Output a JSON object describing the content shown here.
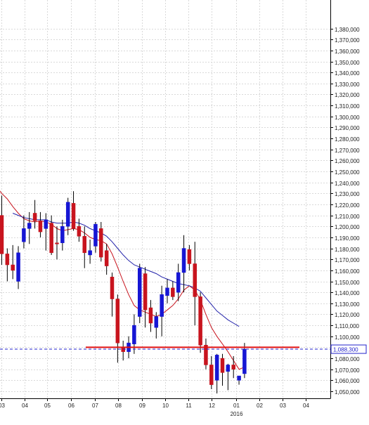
{
  "colors": {
    "background": "#ffffff",
    "grid": "#d9d9d9",
    "axis": "#000000",
    "bull_candle": "#1616d4",
    "bear_candle": "#c8141e",
    "ma_short": "#c8141e",
    "ma_long": "#2222aa",
    "support_line": "#e01010",
    "price_line": "#2222cc",
    "price_label_text": "#2222cc",
    "label_text": "#222222"
  },
  "chart_data": {
    "type": "candlestick",
    "title": "",
    "xlabel": "",
    "ylabel": "",
    "ylim": [
      1043000,
      1389000
    ],
    "grid": true,
    "y_ticks": [
      "1,050,000",
      "1,060,000",
      "1,070,000",
      "1,080,000",
      "1,090,000",
      "1,100,000",
      "1,110,000",
      "1,120,000",
      "1,130,000",
      "1,140,000",
      "1,150,000",
      "1,160,000",
      "1,170,000",
      "1,180,000",
      "1,190,000",
      "1,200,000",
      "1,210,000",
      "1,220,000",
      "1,230,000",
      "1,240,000",
      "1,250,000",
      "1,260,000",
      "1,270,000",
      "1,280,000",
      "1,290,000",
      "1,300,000",
      "1,310,000",
      "1,320,000",
      "1,330,000",
      "1,340,000",
      "1,350,000",
      "1,360,000",
      "1,370,000",
      "1,380,000"
    ],
    "x_ticks": [
      "03",
      "04",
      "05",
      "06",
      "07",
      "08",
      "09",
      "10",
      "11",
      "12",
      "01",
      "02",
      "03",
      "04"
    ],
    "x_sublabel": {
      "under": "01",
      "text": "2016"
    },
    "candles": [
      {
        "o": 1210000,
        "h": 1228000,
        "l": 1165000,
        "c": 1175000
      },
      {
        "o": 1175000,
        "h": 1180000,
        "l": 1150000,
        "c": 1165000
      },
      {
        "o": 1165000,
        "h": 1183000,
        "l": 1152000,
        "c": 1160000
      },
      {
        "o": 1150000,
        "h": 1182000,
        "l": 1143000,
        "c": 1176000
      },
      {
        "o": 1186000,
        "h": 1210000,
        "l": 1180000,
        "c": 1198000
      },
      {
        "o": 1198000,
        "h": 1213000,
        "l": 1184000,
        "c": 1203000
      },
      {
        "o": 1212000,
        "h": 1224000,
        "l": 1198000,
        "c": 1205000
      },
      {
        "o": 1205000,
        "h": 1213000,
        "l": 1190000,
        "c": 1195000
      },
      {
        "o": 1198000,
        "h": 1212000,
        "l": 1178000,
        "c": 1206000
      },
      {
        "o": 1203000,
        "h": 1210000,
        "l": 1174000,
        "c": 1176000
      },
      {
        "o": 1185000,
        "h": 1200000,
        "l": 1170000,
        "c": 1184000
      },
      {
        "o": 1185000,
        "h": 1206000,
        "l": 1178000,
        "c": 1200000
      },
      {
        "o": 1200000,
        "h": 1226000,
        "l": 1192000,
        "c": 1222000
      },
      {
        "o": 1221000,
        "h": 1232000,
        "l": 1196000,
        "c": 1198000
      },
      {
        "o": 1200000,
        "h": 1207000,
        "l": 1186000,
        "c": 1191000
      },
      {
        "o": 1191000,
        "h": 1200000,
        "l": 1162000,
        "c": 1176000
      },
      {
        "o": 1174000,
        "h": 1188000,
        "l": 1166000,
        "c": 1178000
      },
      {
        "o": 1182000,
        "h": 1204000,
        "l": 1176000,
        "c": 1202000
      },
      {
        "o": 1198000,
        "h": 1204000,
        "l": 1168000,
        "c": 1172000
      },
      {
        "o": 1178000,
        "h": 1184000,
        "l": 1156000,
        "c": 1164000
      },
      {
        "o": 1154000,
        "h": 1158000,
        "l": 1118000,
        "c": 1134000
      },
      {
        "o": 1134000,
        "h": 1138000,
        "l": 1076000,
        "c": 1094000
      },
      {
        "o": 1090000,
        "h": 1096000,
        "l": 1078000,
        "c": 1086000
      },
      {
        "o": 1086000,
        "h": 1100000,
        "l": 1080000,
        "c": 1094000
      },
      {
        "o": 1093000,
        "h": 1120000,
        "l": 1084000,
        "c": 1110000
      },
      {
        "o": 1118000,
        "h": 1166000,
        "l": 1112000,
        "c": 1162000
      },
      {
        "o": 1157000,
        "h": 1163000,
        "l": 1108000,
        "c": 1124000
      },
      {
        "o": 1126000,
        "h": 1133000,
        "l": 1104000,
        "c": 1112000
      },
      {
        "o": 1108000,
        "h": 1122000,
        "l": 1098000,
        "c": 1118000
      },
      {
        "o": 1118000,
        "h": 1146000,
        "l": 1100000,
        "c": 1138000
      },
      {
        "o": 1137000,
        "h": 1152000,
        "l": 1130000,
        "c": 1144000
      },
      {
        "o": 1144000,
        "h": 1150000,
        "l": 1133000,
        "c": 1136000
      },
      {
        "o": 1140000,
        "h": 1166000,
        "l": 1132000,
        "c": 1158000
      },
      {
        "o": 1158000,
        "h": 1192000,
        "l": 1140000,
        "c": 1180000
      },
      {
        "o": 1179000,
        "h": 1183000,
        "l": 1160000,
        "c": 1166000
      },
      {
        "o": 1166000,
        "h": 1186000,
        "l": 1110000,
        "c": 1136000
      },
      {
        "o": 1136000,
        "h": 1140000,
        "l": 1085000,
        "c": 1092000
      },
      {
        "o": 1092000,
        "h": 1098000,
        "l": 1070000,
        "c": 1074000
      },
      {
        "o": 1074000,
        "h": 1082000,
        "l": 1052000,
        "c": 1056000
      },
      {
        "o": 1060000,
        "h": 1084000,
        "l": 1048000,
        "c": 1083000
      },
      {
        "o": 1080000,
        "h": 1084000,
        "l": 1055000,
        "c": 1067000
      },
      {
        "o": 1068000,
        "h": 1075000,
        "l": 1051000,
        "c": 1074000
      },
      {
        "o": 1074000,
        "h": 1082000,
        "l": 1062000,
        "c": 1070000
      },
      {
        "o": 1060000,
        "h": 1064000,
        "l": 1056000,
        "c": 1064000
      },
      {
        "o": 1066000,
        "h": 1094000,
        "l": 1062000,
        "c": 1088300
      }
    ],
    "ma_short": [
      1230000,
      1225000,
      1218000,
      1212000,
      1207000,
      1205000,
      1204000,
      1205000,
      1204000,
      1202000,
      1198000,
      1196000,
      1197000,
      1198000,
      1197000,
      1194000,
      1190000,
      1188000,
      1187000,
      1184000,
      1175000,
      1163000,
      1150000,
      1138000,
      1128000,
      1124000,
      1122000,
      1120000,
      1118000,
      1120000,
      1124000,
      1128000,
      1134000,
      1142000,
      1146000,
      1142000,
      1133000,
      1120000,
      1108000,
      1100000,
      1093000,
      1086000,
      1078000,
      1070000,
      1072000
    ],
    "ma_long": [
      null,
      null,
      1212000,
      1210000,
      1208000,
      1207000,
      1206000,
      1206000,
      1206000,
      1204000,
      1203000,
      1203000,
      1203000,
      1204000,
      1203000,
      1201000,
      1198000,
      1196000,
      1194000,
      1191000,
      1186000,
      1180000,
      1174000,
      1169000,
      1165000,
      1163000,
      1161000,
      1159000,
      1157000,
      1154000,
      1152000,
      1150000,
      1148000,
      1147000,
      1146000,
      1144000,
      1141000,
      1135000,
      1129000,
      1123000,
      1119000,
      1115000,
      1112000,
      1109000,
      null
    ],
    "support_level": 1090000,
    "current_price": 1088300,
    "current_price_label": "1,088,300"
  }
}
